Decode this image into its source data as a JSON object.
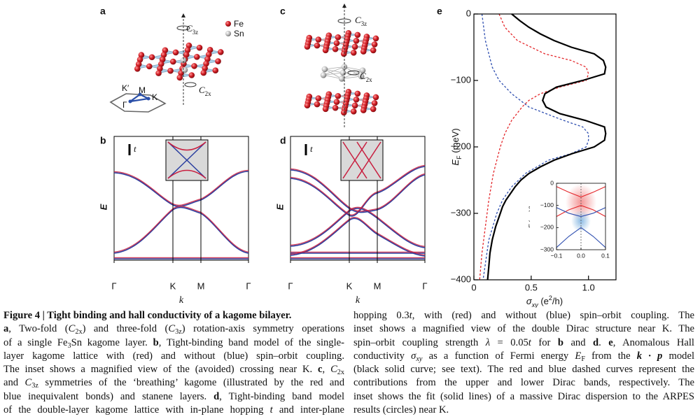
{
  "panels": {
    "a": {
      "label": "a",
      "legend": [
        "Fe",
        "Sn"
      ],
      "c3z": [
        "C",
        "3z"
      ],
      "c2x": [
        "C",
        "2x"
      ],
      "bz": [
        "K′",
        "M",
        "K",
        "Γ"
      ]
    },
    "b": {
      "label": "b",
      "scale": "t",
      "y_label": "E",
      "x_label": "k",
      "xticks": [
        "Γ",
        "K",
        "M",
        "Γ"
      ]
    },
    "c": {
      "label": "c",
      "c3z": [
        "C",
        "3z"
      ],
      "c2x": [
        "C",
        "2x"
      ]
    },
    "d": {
      "label": "d",
      "scale": "t",
      "y_label": "E",
      "x_label": "k",
      "xticks": [
        "Γ",
        "K",
        "M",
        "Γ"
      ]
    },
    "e": {
      "label": "e"
    }
  },
  "chart_data": [
    {
      "type": "line",
      "x_label": [
        "σ",
        "xy",
        " (e",
        "2",
        "/h)"
      ],
      "y_label": [
        "E",
        "F",
        " (meV)"
      ],
      "xlim": [
        0,
        1.24
      ],
      "ylim": [
        -400,
        0
      ],
      "xticks": [
        0,
        0.5,
        {
          "value": 1,
          "label": "1.0"
        }
      ],
      "yticks": [
        0,
        {
          "value": -100,
          "label": "−100"
        },
        {
          "value": -200,
          "label": "−200"
        },
        {
          "value": -300,
          "label": "−300"
        },
        {
          "value": -400,
          "label": "−400"
        }
      ],
      "series": [
        {
          "color": "#e4262a",
          "dash": true,
          "x": [
            0.22,
            0.27,
            0.38,
            0.62,
            0.85,
            0.98,
            1.0,
            0.98,
            0.75,
            0.58,
            0.48,
            0.42,
            0.33,
            0.27,
            0.23,
            0.17,
            0.13,
            0.1,
            0.07,
            0.05
          ],
          "values": [
            0,
            -20,
            -40,
            -60,
            -70,
            -80,
            -90,
            -100,
            -110,
            -120,
            -130,
            -140,
            -160,
            -180,
            -200,
            -240,
            -280,
            -320,
            -360,
            -400
          ]
        },
        {
          "color": "#2f4fb0",
          "dash": true,
          "x": [
            0.07,
            0.1,
            0.16,
            0.22,
            0.33,
            0.48,
            0.78,
            0.95,
            1.0,
            1.0,
            0.98,
            0.85,
            0.65,
            0.45,
            0.33,
            0.25,
            0.2,
            0.13,
            0.08
          ],
          "values": [
            0,
            -40,
            -80,
            -100,
            -120,
            -140,
            -160,
            -170,
            -180,
            -190,
            -200,
            -210,
            -220,
            -240,
            -260,
            -280,
            -300,
            -340,
            -400
          ]
        },
        {
          "color": "#000000",
          "dash": false,
          "x": [
            0.33,
            0.4,
            0.48,
            0.58,
            0.7,
            0.85,
            1.05,
            1.13,
            1.15,
            1.14,
            0.95,
            0.72,
            0.62,
            0.6,
            0.63,
            0.75,
            0.97,
            1.14,
            1.15,
            1.14,
            1.05,
            0.86,
            0.7,
            0.58,
            0.48,
            0.41,
            0.36,
            0.32,
            0.28,
            0.25,
            0.23,
            0.19,
            0.16,
            0.14,
            0.13,
            0.12
          ],
          "values": [
            0,
            -10,
            -20,
            -30,
            -40,
            -50,
            -60,
            -70,
            -80,
            -90,
            -100,
            -110,
            -120,
            -130,
            -140,
            -150,
            -160,
            -170,
            -180,
            -190,
            -200,
            -210,
            -220,
            -230,
            -240,
            -250,
            -260,
            -270,
            -280,
            -290,
            -300,
            -320,
            -340,
            -360,
            -380,
            -400
          ]
        }
      ]
    },
    {
      "type": "line",
      "title": "K, K′",
      "x_label": [
        "k",
        " (Å",
        "−1",
        ")"
      ],
      "y_label": [
        "E",
        " (meV)"
      ],
      "xlim": [
        -0.1,
        0.1
      ],
      "ylim": [
        -300,
        0
      ],
      "xticks": [
        {
          "value": -0.1,
          "label": "−0.1"
        },
        {
          "value": 0,
          "label": "0.0"
        },
        0.1
      ],
      "yticks": [
        0,
        {
          "value": -100,
          "label": "−100"
        },
        {
          "value": -200,
          "label": "−200"
        },
        {
          "value": -300,
          "label": "−300"
        }
      ],
      "series": [
        {
          "color": "#e4262a",
          "dash": false,
          "x": [
            -0.1,
            -0.05,
            0,
            0.05,
            0.1
          ],
          "values": [
            -15,
            -40,
            -62,
            -40,
            -15
          ]
        },
        {
          "color": "#e4262a",
          "dash": false,
          "x": [
            -0.1,
            -0.05,
            0,
            0.05,
            0.1
          ],
          "values": [
            -150,
            -120,
            -100,
            -120,
            -150
          ]
        },
        {
          "color": "#2f4fb0",
          "dash": false,
          "x": [
            -0.1,
            -0.05,
            0,
            0.05,
            0.1
          ],
          "values": [
            -110,
            -135,
            -150,
            -135,
            -110
          ]
        },
        {
          "color": "#2f4fb0",
          "dash": false,
          "x": [
            -0.1,
            -0.05,
            0,
            0.05,
            0.1
          ],
          "values": [
            -290,
            -240,
            -200,
            -240,
            -290
          ]
        }
      ]
    }
  ],
  "caption": {
    "left": [
      [
        "Figure 4 | Tight binding and hall conductivity of a kagome bilayer."
      ],
      [
        "a",
        ", Two-fold (",
        "C",
        "2x",
        ") and three-fold (",
        "C",
        "3z",
        ") rotation-axis symmetry operations"
      ],
      [
        "of a single Fe",
        "3",
        "Sn kagome layer. ",
        "b",
        ", Tight-binding band model of the single-"
      ],
      [
        "layer kagome lattice with (red) and without (blue) spin–orbit coupling."
      ],
      [
        "The inset shows a magnified view of the (avoided) crossing near K. ",
        "c",
        ", ",
        "C",
        "2x"
      ],
      [
        "and ",
        "C",
        "3z",
        " symmetries of the ‘breathing’ kagome (illustrated by the red and"
      ],
      [
        "blue inequivalent bonds) and stanene layers. ",
        "d",
        ", Tight-binding band model"
      ],
      [
        "of the double-layer kagome lattice with in-plane hopping ",
        "t",
        " and inter-plane"
      ]
    ],
    "right": [
      [
        "hopping 0.3",
        "t",
        ", with (red) and without (blue) spin–orbit coupling. The"
      ],
      [
        "inset shows a magnified view of the double Dirac structure near K. The"
      ],
      [
        "spin–orbit coupling strength ",
        "λ",
        " = 0.05",
        "t",
        " for ",
        "b",
        " and ",
        "d",
        ". ",
        "e",
        ", Anomalous Hall"
      ],
      [
        "conductivity ",
        "σ",
        "xy",
        " as a function of Fermi energy ",
        "E",
        "F",
        " from the ",
        "k · p",
        " model"
      ],
      [
        "(black solid curve; see text). The red and blue dashed curves represent the"
      ],
      [
        "contributions from the upper and lower Dirac bands, respectively. The"
      ],
      [
        "inset shows the fit (solid lines) of a massive Dirac dispersion to the ARPES"
      ],
      [
        "results (circles) near K."
      ]
    ]
  }
}
